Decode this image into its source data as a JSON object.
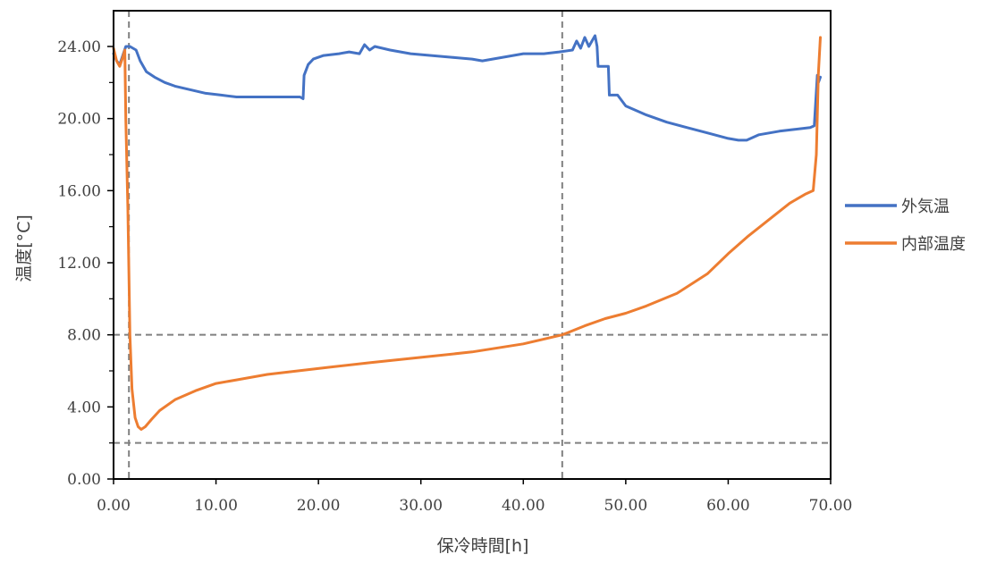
{
  "chart_data": {
    "type": "line",
    "xlabel": "保冷時間[h]",
    "ylabel": "温度[°C]",
    "xlim": [
      0,
      70
    ],
    "ylim": [
      0,
      26
    ],
    "x_ticks": [
      "0.00",
      "10.00",
      "20.00",
      "30.00",
      "40.00",
      "50.00",
      "60.00",
      "70.00"
    ],
    "y_ticks": [
      "0.00",
      "4.00",
      "8.00",
      "12.00",
      "16.00",
      "20.00",
      "24.00"
    ],
    "legend_position": "right",
    "grid": false,
    "reference_lines": {
      "horizontal": [
        2,
        8
      ],
      "vertical": [
        1.5,
        43.8
      ],
      "color": "#808080",
      "style": "dashed"
    },
    "series": [
      {
        "name": "外気温",
        "color": "#4472C4",
        "points": [
          [
            0,
            23.6
          ],
          [
            0.3,
            23.2
          ],
          [
            0.6,
            23.0
          ],
          [
            0.9,
            23.5
          ],
          [
            1.2,
            24.0
          ],
          [
            1.6,
            24.0
          ],
          [
            2.2,
            23.8
          ],
          [
            2.6,
            23.2
          ],
          [
            3.2,
            22.6
          ],
          [
            4.0,
            22.3
          ],
          [
            5.0,
            22.0
          ],
          [
            6.0,
            21.8
          ],
          [
            7.5,
            21.6
          ],
          [
            9.0,
            21.4
          ],
          [
            10.5,
            21.3
          ],
          [
            12.0,
            21.2
          ],
          [
            14.0,
            21.2
          ],
          [
            16.0,
            21.2
          ],
          [
            17.5,
            21.2
          ],
          [
            18.2,
            21.2
          ],
          [
            18.5,
            21.1
          ],
          [
            18.6,
            22.4
          ],
          [
            19.0,
            23.0
          ],
          [
            19.5,
            23.3
          ],
          [
            20.5,
            23.5
          ],
          [
            22.0,
            23.6
          ],
          [
            23.0,
            23.7
          ],
          [
            24.0,
            23.6
          ],
          [
            24.5,
            24.1
          ],
          [
            25.0,
            23.8
          ],
          [
            25.5,
            24.0
          ],
          [
            27.0,
            23.8
          ],
          [
            29.0,
            23.6
          ],
          [
            31.0,
            23.5
          ],
          [
            33.0,
            23.4
          ],
          [
            35.0,
            23.3
          ],
          [
            36.0,
            23.2
          ],
          [
            37.0,
            23.3
          ],
          [
            38.0,
            23.4
          ],
          [
            40.0,
            23.6
          ],
          [
            42.0,
            23.6
          ],
          [
            43.5,
            23.7
          ],
          [
            44.8,
            23.8
          ],
          [
            45.2,
            24.3
          ],
          [
            45.6,
            23.9
          ],
          [
            46.0,
            24.5
          ],
          [
            46.4,
            24.0
          ],
          [
            47.0,
            24.6
          ],
          [
            47.2,
            24.0
          ],
          [
            47.3,
            22.9
          ],
          [
            48.3,
            22.9
          ],
          [
            48.4,
            21.3
          ],
          [
            49.2,
            21.3
          ],
          [
            50.0,
            20.7
          ],
          [
            52.0,
            20.2
          ],
          [
            54.0,
            19.8
          ],
          [
            56.0,
            19.5
          ],
          [
            58.0,
            19.2
          ],
          [
            60.0,
            18.9
          ],
          [
            61.0,
            18.8
          ],
          [
            61.8,
            18.8
          ],
          [
            63.0,
            19.1
          ],
          [
            65.0,
            19.3
          ],
          [
            66.5,
            19.4
          ],
          [
            68.0,
            19.5
          ],
          [
            68.4,
            19.6
          ],
          [
            68.7,
            22.4
          ],
          [
            68.8,
            22.0
          ],
          [
            69.0,
            22.3
          ]
        ]
      },
      {
        "name": "内部温度",
        "color": "#ED7D31",
        "points": [
          [
            0,
            23.9
          ],
          [
            0.3,
            23.2
          ],
          [
            0.6,
            22.9
          ],
          [
            0.9,
            23.4
          ],
          [
            1.1,
            23.8
          ],
          [
            1.2,
            20.0
          ],
          [
            1.4,
            15.0
          ],
          [
            1.6,
            8.0
          ],
          [
            1.8,
            5.0
          ],
          [
            2.1,
            3.4
          ],
          [
            2.4,
            2.9
          ],
          [
            2.7,
            2.75
          ],
          [
            3.1,
            2.9
          ],
          [
            3.7,
            3.3
          ],
          [
            4.5,
            3.8
          ],
          [
            6.0,
            4.4
          ],
          [
            8.0,
            4.9
          ],
          [
            10.0,
            5.3
          ],
          [
            12.0,
            5.5
          ],
          [
            15.0,
            5.8
          ],
          [
            18.0,
            6.0
          ],
          [
            21.0,
            6.2
          ],
          [
            25.0,
            6.45
          ],
          [
            30.0,
            6.75
          ],
          [
            35.0,
            7.05
          ],
          [
            40.0,
            7.5
          ],
          [
            43.8,
            8.0
          ],
          [
            46.0,
            8.5
          ],
          [
            48.0,
            8.9
          ],
          [
            50.0,
            9.2
          ],
          [
            52.0,
            9.6
          ],
          [
            55.0,
            10.3
          ],
          [
            58.0,
            11.4
          ],
          [
            60.0,
            12.5
          ],
          [
            62.0,
            13.5
          ],
          [
            64.0,
            14.4
          ],
          [
            66.0,
            15.3
          ],
          [
            67.5,
            15.8
          ],
          [
            68.3,
            16.0
          ],
          [
            68.6,
            18.0
          ],
          [
            68.8,
            22.5
          ],
          [
            69.0,
            24.5
          ]
        ]
      }
    ]
  }
}
